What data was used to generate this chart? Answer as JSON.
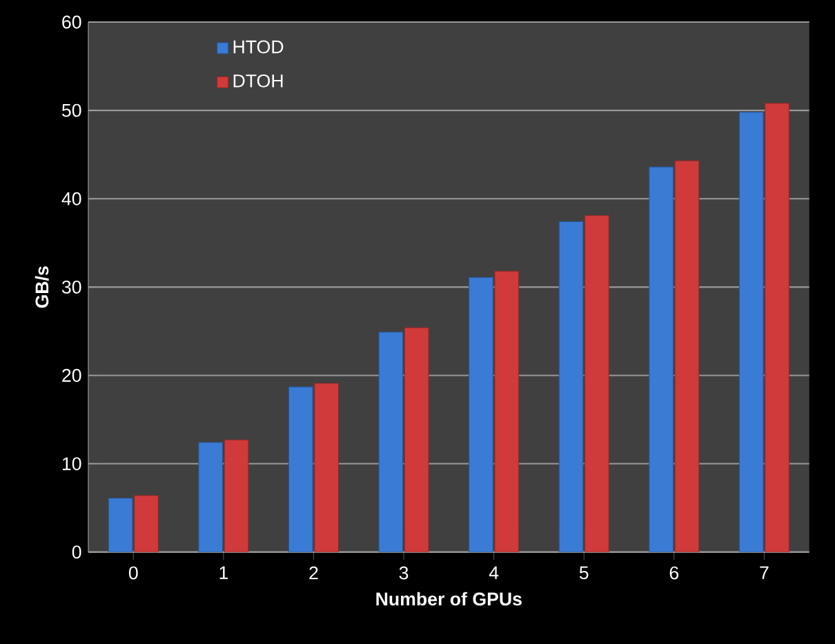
{
  "chart_data": {
    "type": "bar",
    "xlabel": "Number of GPUs",
    "ylabel": "GB/s",
    "categories": [
      "0",
      "1",
      "2",
      "3",
      "4",
      "5",
      "6",
      "7"
    ],
    "series": [
      {
        "name": "HTOD",
        "color": "#3a7bd5",
        "values": [
          6.1,
          12.4,
          18.7,
          24.9,
          31.1,
          37.4,
          43.6,
          49.8
        ]
      },
      {
        "name": "DTOH",
        "color": "#d03a3a",
        "values": [
          6.4,
          12.7,
          19.1,
          25.4,
          31.8,
          38.1,
          44.3,
          50.8
        ]
      }
    ],
    "ylim": [
      0,
      60
    ],
    "yticks": [
      0,
      10,
      20,
      30,
      40,
      50,
      60
    ],
    "grid": "y",
    "legend": "top left"
  }
}
